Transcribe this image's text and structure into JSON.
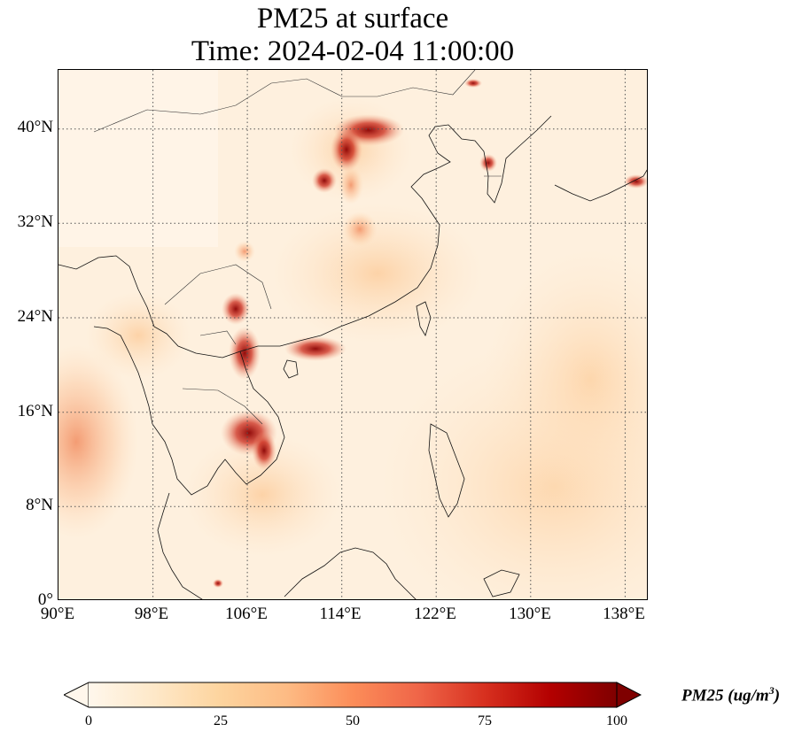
{
  "title": {
    "line1": "PM25 at surface",
    "line2": "Time: 2024-02-04 11:00:00"
  },
  "map": {
    "extent": {
      "lon": [
        90,
        140
      ],
      "lat": [
        0,
        45
      ]
    },
    "lat_ticks": [
      "40°N",
      "32°N",
      "24°N",
      "16°N",
      "8°N",
      "0°"
    ],
    "lat_values": [
      40,
      32,
      24,
      16,
      8,
      0
    ],
    "lon_ticks": [
      "90°E",
      "98°E",
      "106°E",
      "114°E",
      "122°E",
      "130°E",
      "138°E"
    ],
    "lon_values": [
      90,
      98,
      106,
      114,
      122,
      130,
      138
    ],
    "gridlines": true
  },
  "colorbar": {
    "label_main": "PM25 (ug/m",
    "label_exp": "3",
    "label_close": ")",
    "ticks": [
      "0",
      "25",
      "50",
      "75",
      "100"
    ],
    "tick_values": [
      0,
      25,
      50,
      75,
      100
    ],
    "range": [
      0,
      100
    ],
    "extend": "both",
    "colormap": "OrRd",
    "colors": [
      "#fff7ec",
      "#fee8c8",
      "#fdd49e",
      "#fdbb84",
      "#fc8d59",
      "#ef6548",
      "#d7301f",
      "#b30000",
      "#7f0000"
    ]
  }
}
